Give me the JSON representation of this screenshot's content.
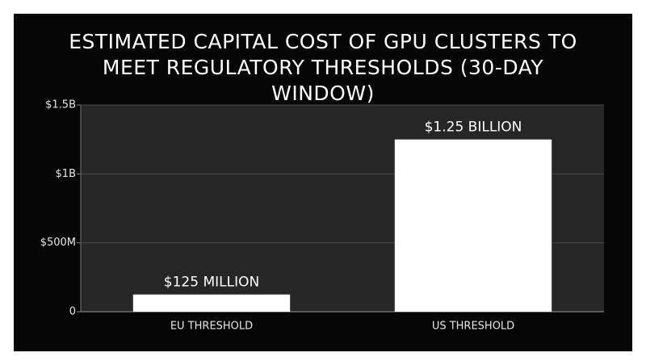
{
  "chart_data": {
    "type": "bar",
    "title": "ESTIMATED CAPITAL COST OF GPU CLUSTERS TO MEET REGULATORY THRESHOLDS (30-DAY WINDOW)",
    "categories": [
      "EU THRESHOLD",
      "US THRESHOLD"
    ],
    "values": [
      125000000,
      1250000000
    ],
    "value_labels": [
      "$125 MILLION",
      "$1.25 BILLION"
    ],
    "color": "#ffffff",
    "ylim": [
      0,
      1500000000
    ],
    "yticks": [
      0,
      {
        "value": 500000000,
        "label": "$500M"
      },
      {
        "value": 1000000000,
        "label": "$1B"
      },
      {
        "value": 1500000000,
        "label": "$1.5B"
      }
    ],
    "grid": true
  }
}
